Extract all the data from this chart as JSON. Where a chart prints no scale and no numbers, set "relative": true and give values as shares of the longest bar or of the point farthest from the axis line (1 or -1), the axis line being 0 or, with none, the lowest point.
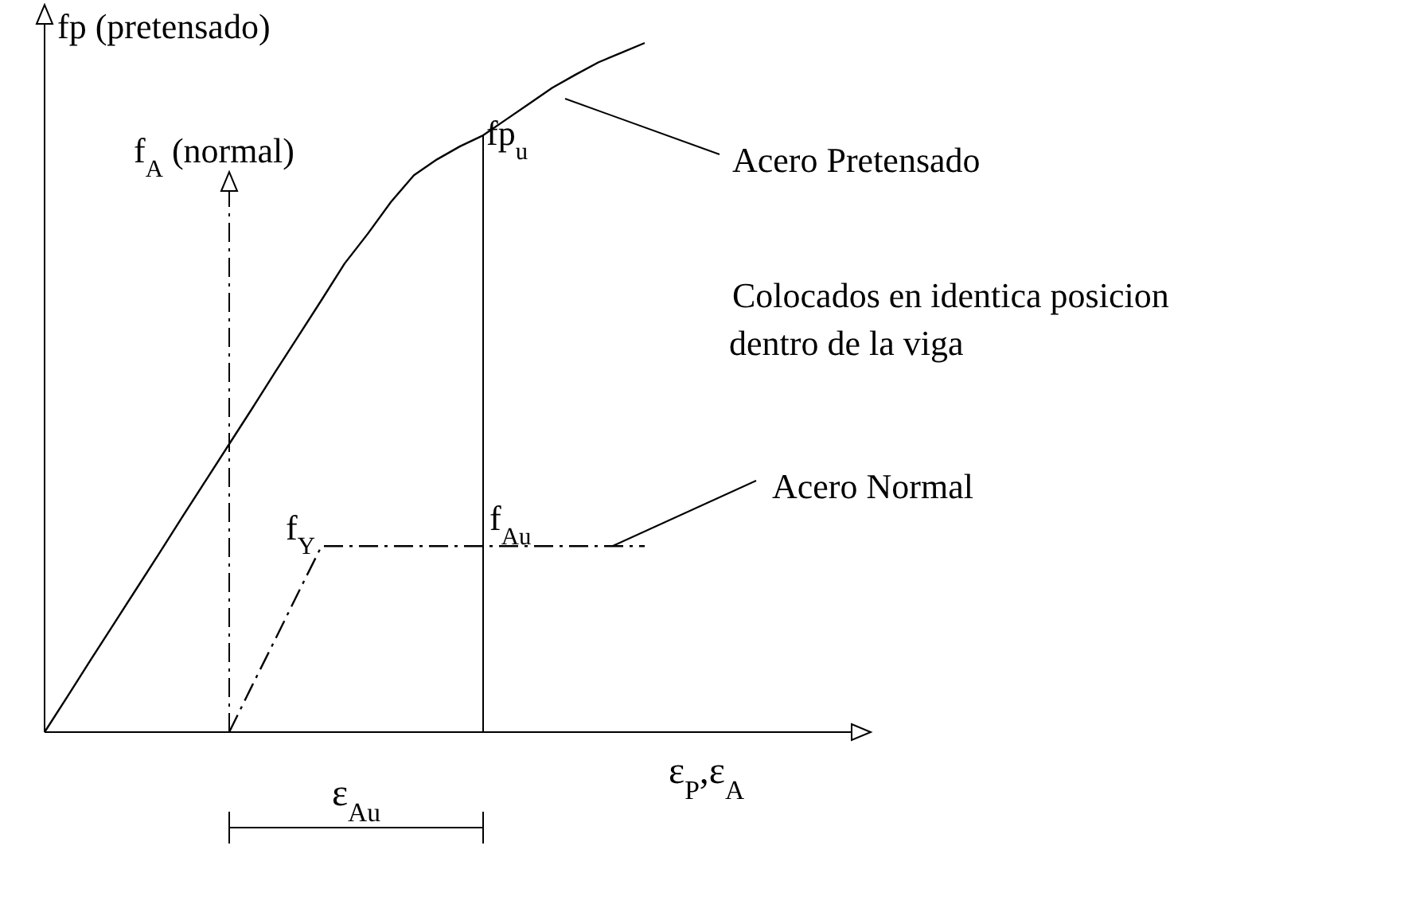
{
  "chart_data": {
    "type": "line",
    "relative": true,
    "ylabel": "fp (pretensado)",
    "xlabel": "ε$_{P}$,ε$_{A}$",
    "categories": [
      null,
      null,
      null,
      null,
      null,
      null,
      null,
      null,
      null,
      null,
      null,
      null,
      null,
      null,
      null,
      null,
      null,
      null,
      null,
      null,
      null,
      null,
      null,
      null,
      null,
      null,
      null
    ],
    "series": [
      {
        "name": "Acero Pretensado",
        "color": "#000000",
        "line_style": "solid",
        "values": [
          0,
          0.052,
          0.105,
          0.157,
          0.209,
          0.261,
          0.314,
          0.366,
          0.418,
          0.47,
          0.523,
          0.575,
          0.627,
          0.68,
          0.723,
          0.769,
          0.808,
          0.831,
          0.85,
          0.866,
          0.889,
          0.912,
          0.935,
          0.954,
          0.972,
          0.986,
          1
        ]
      },
      {
        "name": "Acero Normal",
        "color": "#000000",
        "line_style": "dashed",
        "values": [
          null,
          null,
          null,
          null,
          null,
          null,
          null,
          null,
          0,
          0.068,
          0.135,
          0.203,
          0.27,
          0.27,
          0.27,
          0.27,
          0.27,
          0.27,
          0.27,
          0.27,
          0.27,
          0.27,
          0.27,
          0.27,
          0.27,
          0.27,
          0.27
        ]
      }
    ],
    "annotations": [
      "f$_{A}$ (normal)",
      "fp$_{u}$",
      "f$_{Y}$",
      "f$_{Au}$",
      "ε$_{Au}$",
      "Colocados en identica posicion dentro de la viga"
    ],
    "grid": false,
    "legend": false,
    "marker": "none"
  }
}
